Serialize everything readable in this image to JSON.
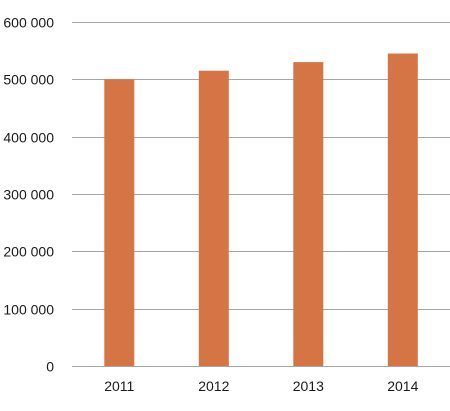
{
  "chart_data": {
    "type": "bar",
    "categories": [
      "2011",
      "2012",
      "2013",
      "2014"
    ],
    "values": [
      500000,
      515000,
      530000,
      545000
    ],
    "ylim": [
      0,
      600000
    ],
    "yticks": [
      0,
      100000,
      200000,
      300000,
      400000,
      500000,
      600000
    ],
    "ytick_labels": [
      "0",
      "100 000",
      "200 000",
      "300 000",
      "400 000",
      "500 000",
      "600 000"
    ],
    "title": "",
    "xlabel": "",
    "ylabel": "",
    "grid": true,
    "legend": "none",
    "colors": {
      "bar": "#D57444",
      "grid": "#A6A6A6",
      "text": "#1a1a1a"
    }
  }
}
